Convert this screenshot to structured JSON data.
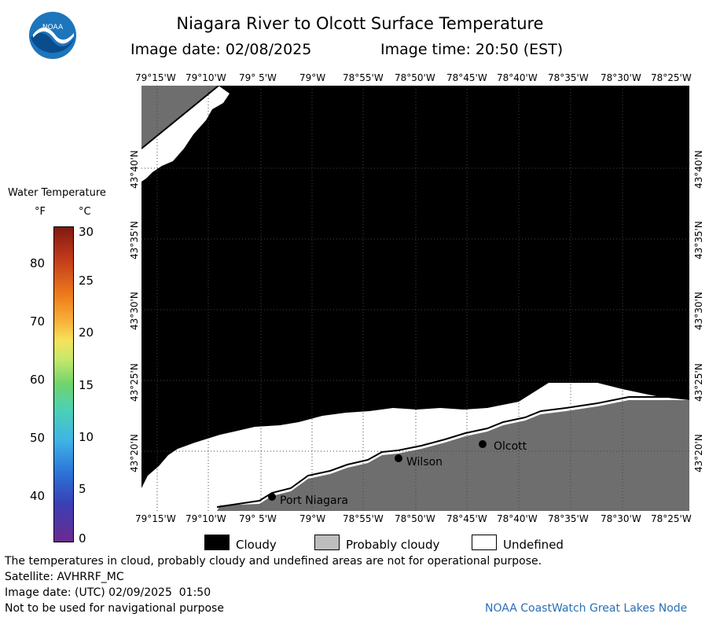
{
  "header": {
    "title": "Niagara River to Olcott Surface Temperature",
    "image_date_label": "Image date: 02/08/2025",
    "image_time_label": "Image time: 20:50 (EST)",
    "logo_text": "NOAA"
  },
  "map": {
    "lon_ticks": [
      "79°15'W",
      "79°10'W",
      "79° 5'W",
      "79°W",
      "78°55'W",
      "78°50'W",
      "78°45'W",
      "78°40'W",
      "78°35'W",
      "78°30'W",
      "78°25'W"
    ],
    "lat_ticks": [
      "43°40'N",
      "43°35'N",
      "43°30'N",
      "43°25'N",
      "43°20'N"
    ],
    "places": {
      "port_niagara": "Port Niagara",
      "wilson": "Wilson",
      "olcott": "Olcott"
    },
    "colors": {
      "cloudy": "#000000",
      "probably_cloudy": "#6e6e6e",
      "undefined": "#ffffff"
    }
  },
  "legend": {
    "title": "Water Temperature",
    "unit_f": "°F",
    "unit_c": "°C",
    "f_labels": [
      "80",
      "70",
      "60",
      "50",
      "40"
    ],
    "c_labels": [
      "30",
      "25",
      "20",
      "15",
      "10",
      "5",
      "0"
    ]
  },
  "key": {
    "cloudy": "Cloudy",
    "probably_cloudy": "Probably cloudy",
    "undefined": "Undefined"
  },
  "footer": {
    "disclaimer": "The temperatures in cloud, probably cloudy and undefined areas are not for operational purpose.",
    "satellite": "Satellite: AVHRRF_MC",
    "utc_date": "Image date: (UTC) 02/09/2025  01:50",
    "nav_warning": "Not to be used for navigational purpose",
    "credit": "NOAA CoastWatch Great Lakes Node"
  }
}
